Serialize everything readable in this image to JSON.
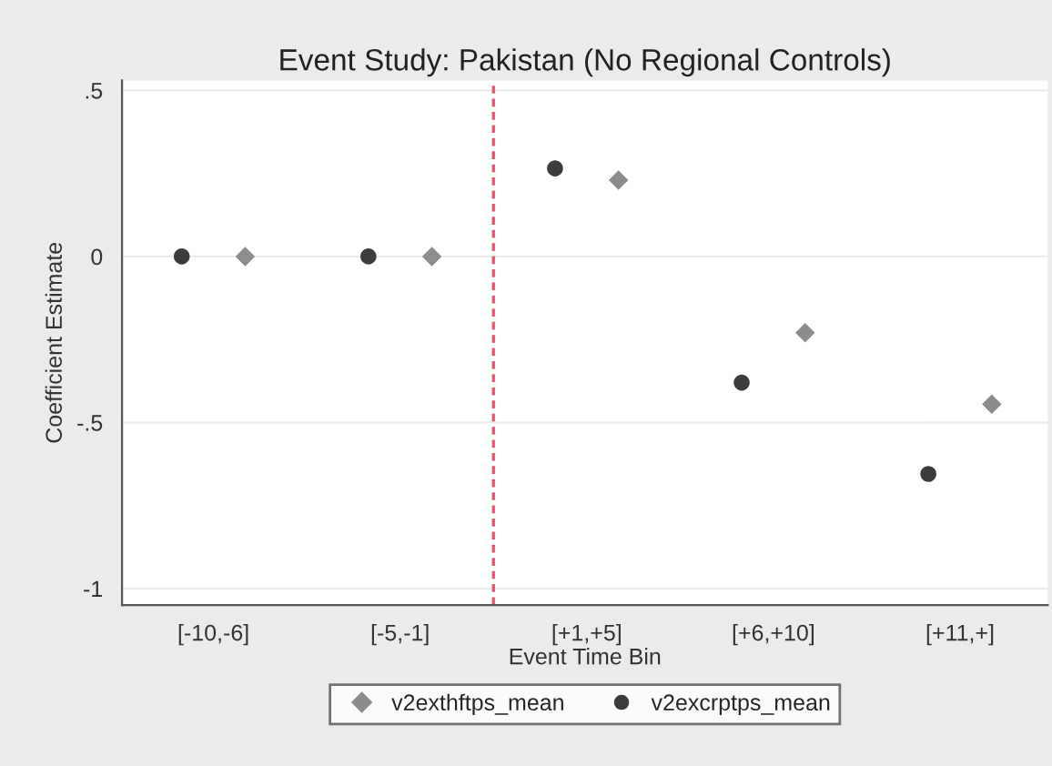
{
  "chart_data": {
    "type": "scatter",
    "title": "Event Study: Pakistan (No Regional Controls)",
    "xlabel": "Event Time Bin",
    "ylabel": "Coefficient Estimate",
    "categories": [
      "[-10,-6]",
      "[-5,-1]",
      "[+1,+5]",
      "[+6,+10]",
      "[+11,+]"
    ],
    "series": [
      {
        "name": "v2exthftps_mean",
        "color": "#8c8c8c",
        "marker": "diamond",
        "values": [
          0,
          0,
          0.23,
          -0.23,
          -0.445
        ]
      },
      {
        "name": "v2excrptps_mean",
        "color": "#3c3c3c",
        "marker": "circle",
        "values": [
          0,
          0,
          0.265,
          -0.38,
          -0.655
        ]
      }
    ],
    "ylim": [
      -1.05,
      0.53
    ],
    "yticks": [
      {
        "value": 0.5,
        "label": ".5"
      },
      0,
      {
        "value": -0.5,
        "label": "-.5"
      },
      -1
    ],
    "grid": "y",
    "legend": "bottom"
  }
}
